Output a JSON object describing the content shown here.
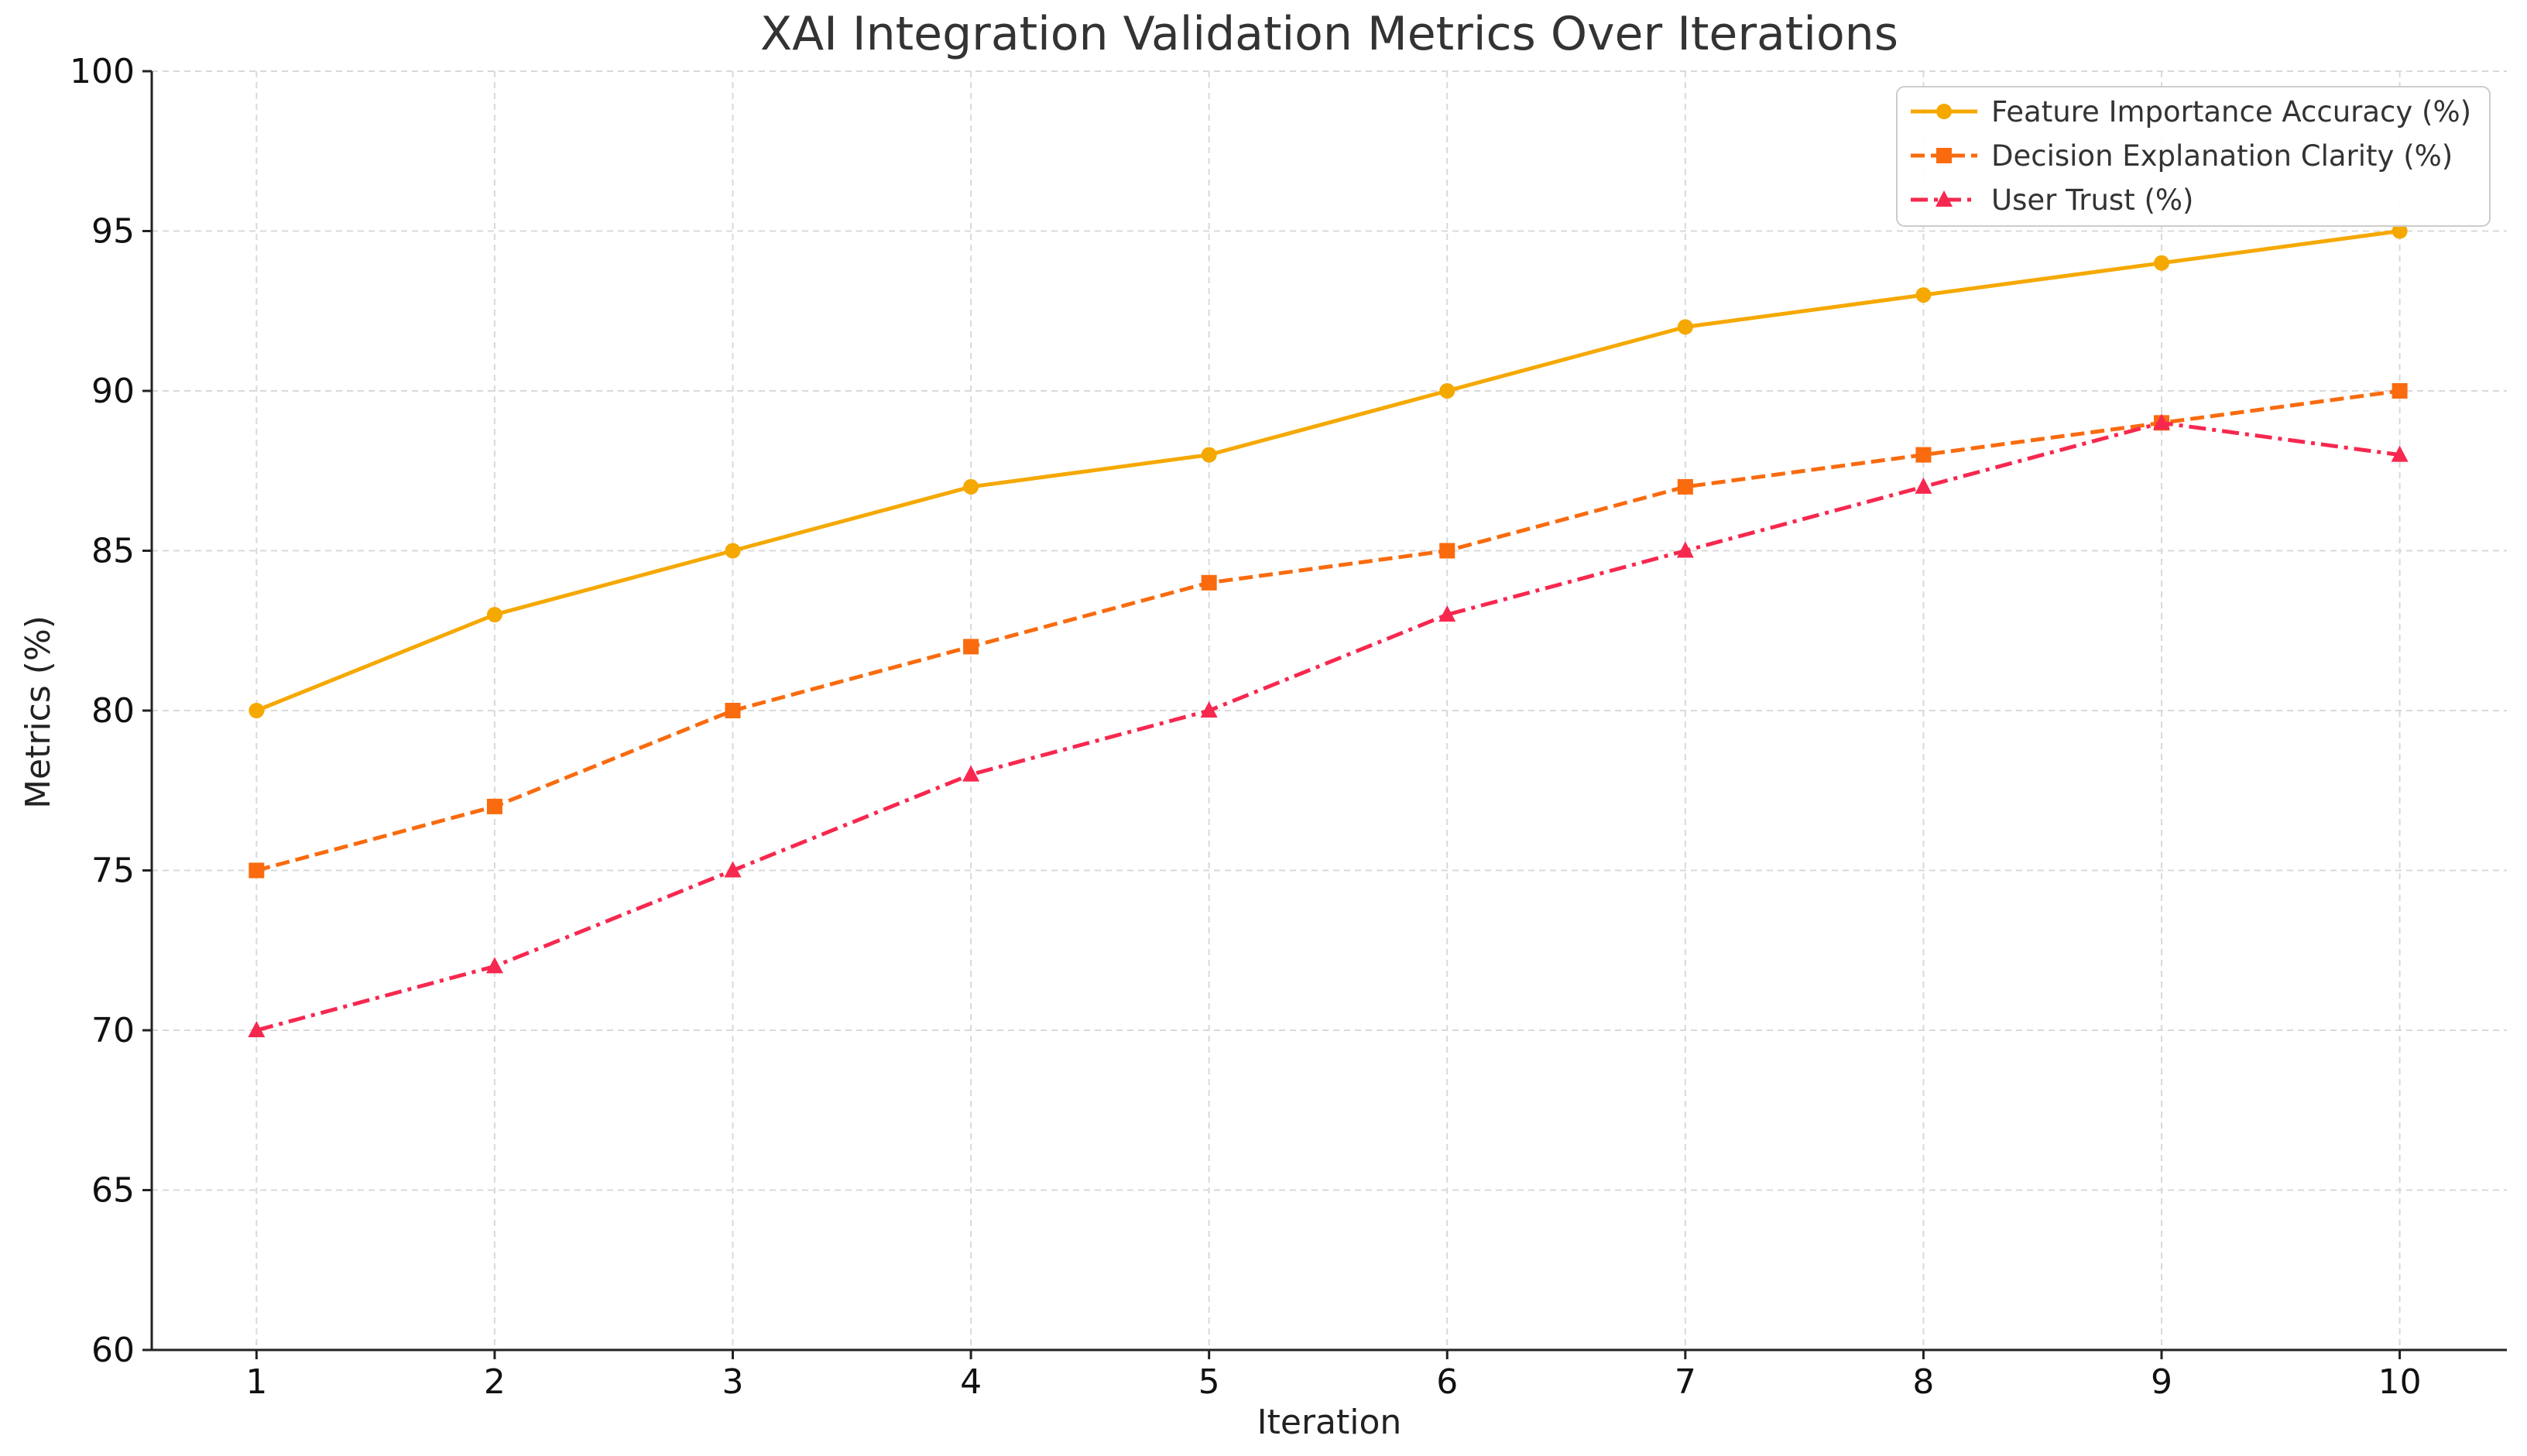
{
  "chart_data": {
    "type": "line",
    "title": "XAI Integration Validation Metrics Over Iterations",
    "xlabel": "Iteration",
    "ylabel": "Metrics (%)",
    "x": [
      1,
      2,
      3,
      4,
      5,
      6,
      7,
      8,
      9,
      10
    ],
    "x_tick_labels": [
      "1",
      "2",
      "3",
      "4",
      "5",
      "6",
      "7",
      "8",
      "9",
      "10"
    ],
    "ylim": [
      60,
      100
    ],
    "y_ticks": [
      60,
      65,
      70,
      75,
      80,
      85,
      90,
      95,
      100
    ],
    "y_tick_labels": [
      "60",
      "65",
      "70",
      "75",
      "80",
      "85",
      "90",
      "95",
      "100"
    ],
    "grid": true,
    "legend_position": "top-right",
    "series": [
      {
        "name": "Feature Importance Accuracy (%)",
        "values": [
          80,
          83,
          85,
          87,
          88,
          90,
          92,
          93,
          94,
          95
        ],
        "color": "#f5a800",
        "marker": "circle",
        "line_style": "solid"
      },
      {
        "name": "Decision Explanation Clarity (%)",
        "values": [
          75,
          77,
          80,
          82,
          84,
          85,
          87,
          88,
          89,
          90
        ],
        "color": "#f96b0e",
        "marker": "square",
        "line_style": "dashed"
      },
      {
        "name": "User Trust (%)",
        "values": [
          70,
          72,
          75,
          78,
          80,
          83,
          85,
          87,
          89,
          88
        ],
        "color": "#f7284f",
        "marker": "triangle",
        "line_style": "dashdot"
      }
    ]
  }
}
